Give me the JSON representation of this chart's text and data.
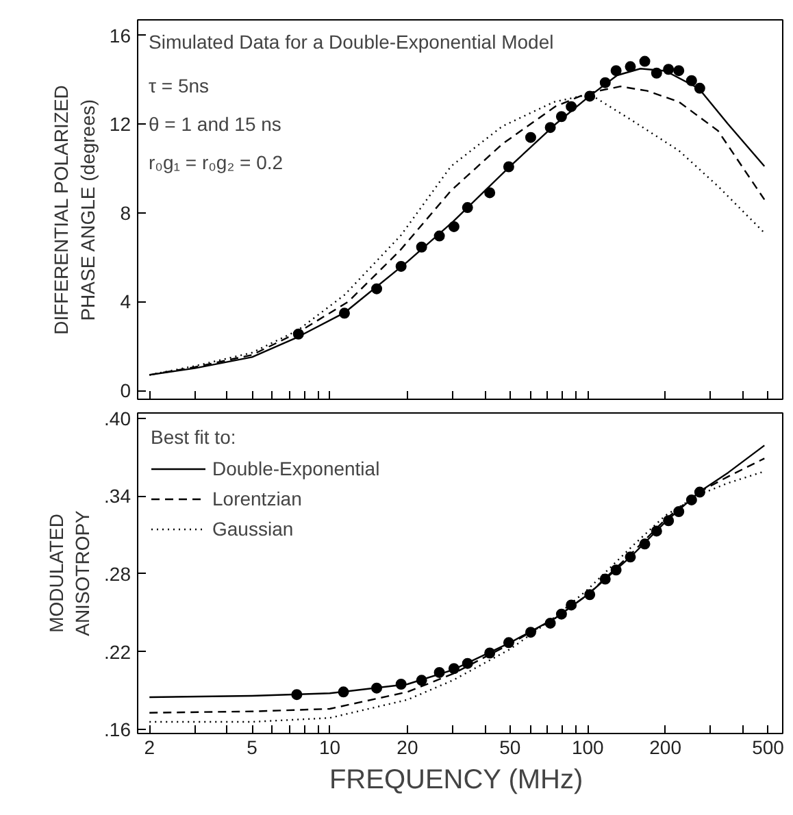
{
  "chart_data": [
    {
      "type": "line",
      "title": "Simulated Data for a Double-Exponential Model",
      "ylabel": "DIFFERENTIAL POLARIZED\nPHASE ANGLE (degrees)",
      "annotations": [
        "τ = 5ns",
        "θ = 1 and 15 ns",
        "r₀g₁ = r₀g₂ = 0.2"
      ],
      "log": "x",
      "xlim": [
        1.8,
        570
      ],
      "ylim": [
        -0.4,
        16.7
      ],
      "tick_labels": "y",
      "grid": false,
      "legend": false,
      "xticks": [
        2,
        {
          "value": 3,
          "label": null
        },
        {
          "value": 4,
          "label": null
        },
        5,
        {
          "value": 6,
          "label": null
        },
        {
          "value": 7,
          "label": null
        },
        {
          "value": 8,
          "label": null
        },
        {
          "value": 9,
          "label": null
        },
        10,
        20,
        {
          "value": 30,
          "label": null
        },
        {
          "value": 40,
          "label": null
        },
        50,
        {
          "value": 60,
          "label": null
        },
        {
          "value": 70,
          "label": null
        },
        {
          "value": 80,
          "label": null
        },
        {
          "value": 90,
          "label": null
        },
        100,
        200,
        {
          "value": 300,
          "label": null
        },
        {
          "value": 400,
          "label": null
        },
        500
      ],
      "yticks": [
        0,
        4,
        8,
        12,
        16
      ],
      "series": [
        {
          "line_style": "solid",
          "color": "#000000",
          "x": [
            2,
            3,
            5,
            7.5,
            11.4,
            20,
            30,
            50,
            75,
            100,
            130,
            160,
            200,
            270,
            350,
            484
          ],
          "values": [
            0.7,
            1.0,
            1.5,
            2.4,
            3.5,
            5.8,
            7.6,
            10.1,
            12.0,
            13.2,
            14.2,
            14.5,
            14.4,
            13.6,
            12.0,
            10.1
          ]
        },
        {
          "line_style": "dashed",
          "color": "#000000",
          "x": [
            2,
            3,
            5,
            7.5,
            11.8,
            18.7,
            29.5,
            46.6,
            75,
            100,
            134,
            170,
            226,
            320,
            484
          ],
          "values": [
            0.7,
            1.05,
            1.6,
            2.6,
            4.0,
            6.3,
            9.0,
            11.1,
            12.8,
            13.4,
            13.7,
            13.5,
            13.0,
            11.7,
            8.6
          ]
        },
        {
          "line_style": "dotted",
          "color": "#000000",
          "x": [
            2,
            3,
            5,
            7.5,
            11.4,
            18.9,
            29.5,
            46.6,
            74,
            102,
            147,
            226,
            320,
            484
          ],
          "values": [
            0.7,
            1.1,
            1.7,
            2.7,
            4.3,
            7.0,
            10.1,
            11.9,
            13.0,
            13.35,
            12.2,
            10.8,
            9.2,
            7.1
          ]
        },
        {
          "type": "scatter",
          "marker": "circle",
          "color": "#000000",
          "x": [
            7.56,
            11.4,
            15.2,
            18.9,
            22.7,
            26.6,
            30.3,
            34.2,
            41.7,
            49.4,
            60.1,
            71.6,
            79.1,
            86.3,
            101.8,
            116.9,
            128.8,
            146.3,
            166.4,
            184.9,
            205.6,
            225.4,
            252.6,
            271.8
          ],
          "values": [
            2.54,
            3.48,
            4.58,
            5.59,
            6.46,
            6.96,
            7.38,
            8.24,
            8.91,
            10.08,
            11.4,
            11.85,
            12.34,
            12.79,
            13.26,
            13.87,
            14.41,
            14.59,
            14.83,
            14.3,
            14.47,
            14.41,
            13.96,
            13.62
          ]
        }
      ]
    },
    {
      "type": "line",
      "xlabel": "FREQUENCY  (MHz)",
      "ylabel": "MODULATED\nANISOTROPY",
      "legend_title": "Best fit to:",
      "log": "x",
      "xlim": [
        1.8,
        570
      ],
      "ylim": [
        0.157,
        0.404
      ],
      "grid": false,
      "legend": "top left",
      "xticks": [
        2,
        {
          "value": 3,
          "label": null
        },
        {
          "value": 4,
          "label": null
        },
        5,
        {
          "value": 6,
          "label": null
        },
        {
          "value": 7,
          "label": null
        },
        {
          "value": 8,
          "label": null
        },
        {
          "value": 9,
          "label": null
        },
        10,
        20,
        {
          "value": 30,
          "label": null
        },
        {
          "value": 40,
          "label": null
        },
        50,
        {
          "value": 60,
          "label": null
        },
        {
          "value": 70,
          "label": null
        },
        {
          "value": 80,
          "label": null
        },
        {
          "value": 90,
          "label": null
        },
        100,
        200,
        {
          "value": 300,
          "label": null
        },
        {
          "value": 400,
          "label": null
        },
        500
      ],
      "yticks": [
        {
          "value": 0.16,
          "label": ".16"
        },
        {
          "value": 0.22,
          "label": ".22"
        },
        {
          "value": 0.28,
          "label": ".28"
        },
        {
          "value": 0.34,
          "label": ".34"
        },
        {
          "value": 0.4,
          "label": ".40"
        }
      ],
      "series": [
        {
          "name": "Double-Exponential",
          "line_style": "solid",
          "color": "#000000",
          "x": [
            2,
            5,
            10,
            20,
            30,
            50,
            75,
            100,
            150,
            200,
            270,
            350,
            484
          ],
          "values": [
            0.185,
            0.186,
            0.188,
            0.195,
            0.206,
            0.227,
            0.246,
            0.264,
            0.295,
            0.32,
            0.343,
            0.358,
            0.379
          ]
        },
        {
          "name": "Lorentzian",
          "line_style": "dashed",
          "color": "#000000",
          "x": [
            2,
            5,
            10,
            20,
            30,
            50,
            75,
            100,
            150,
            200,
            270,
            350,
            484
          ],
          "values": [
            0.173,
            0.174,
            0.176,
            0.189,
            0.203,
            0.226,
            0.246,
            0.264,
            0.297,
            0.322,
            0.343,
            0.355,
            0.369
          ]
        },
        {
          "name": "Gaussian",
          "line_style": "dotted",
          "color": "#000000",
          "x": [
            2,
            5,
            10,
            20,
            30,
            50,
            75,
            100,
            150,
            200,
            270,
            350,
            484
          ],
          "values": [
            0.166,
            0.166,
            0.169,
            0.183,
            0.198,
            0.222,
            0.247,
            0.268,
            0.302,
            0.325,
            0.341,
            0.35,
            0.359
          ]
        },
        {
          "type": "scatter",
          "marker": "circle",
          "color": "#000000",
          "x": [
            7.45,
            11.3,
            15.2,
            18.9,
            22.7,
            26.6,
            30.3,
            34.2,
            41.7,
            49.4,
            60.1,
            71.6,
            79.1,
            86.3,
            101.8,
            116.9,
            128.8,
            146.3,
            166.4,
            184.9,
            205.6,
            225.4,
            252.6,
            271.8
          ],
          "values": [
            0.187,
            0.189,
            0.192,
            0.195,
            0.198,
            0.204,
            0.207,
            0.211,
            0.219,
            0.227,
            0.235,
            0.242,
            0.249,
            0.256,
            0.264,
            0.276,
            0.283,
            0.293,
            0.303,
            0.313,
            0.321,
            0.328,
            0.337,
            0.343
          ]
        }
      ]
    }
  ]
}
